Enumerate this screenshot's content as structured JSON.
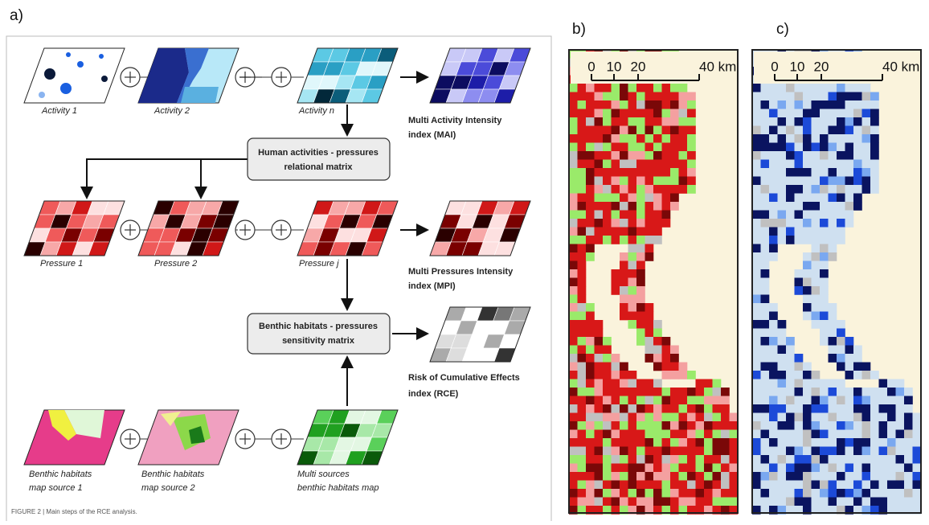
{
  "panel_a": {
    "label": "a)",
    "activity_1": "Activity 1",
    "activity_2": "Activity 2",
    "activity_n": "Activity n",
    "mai": [
      "Multi Activity Intensity",
      "index (MAI)"
    ],
    "relational_matrix": [
      "Human activities - pressures",
      "relational matrix"
    ],
    "pressure_1": "Pressure 1",
    "pressure_2": "Pressure 2",
    "pressure_j": "Pressure j",
    "mpi": [
      "Multi Pressures Intensity",
      "index (MPI)"
    ],
    "sensitivity_matrix": [
      "Benthic habitats - pressures",
      "sensitivity matrix"
    ],
    "rce": [
      "Risk of Cumulative Effects",
      "index (RCE)"
    ],
    "habitat_source_1": [
      "Benthic habitats",
      "map source 1"
    ],
    "habitat_source_2": [
      "Benthic habitats",
      "map source 2"
    ],
    "habitat_multi": [
      "Multi sources",
      "benthic habitats map"
    ],
    "caption": "FIGURE 2 | Main steps of the RCE analysis."
  },
  "panel_b": {
    "label": "b)",
    "scale_labels": [
      "0",
      "10",
      "20",
      "40 km"
    ]
  },
  "panel_c": {
    "label": "c)",
    "scale_labels": [
      "0",
      "10",
      "20",
      "40 km"
    ]
  }
}
